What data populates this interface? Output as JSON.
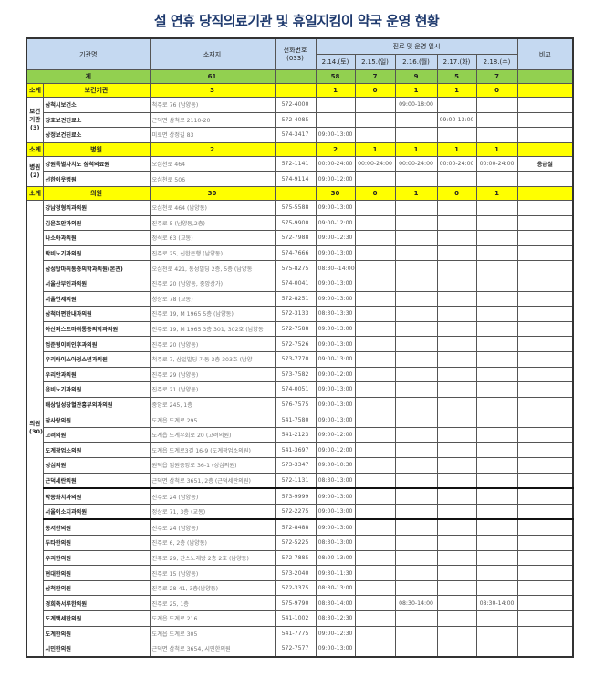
{
  "title": "설 연휴 당직의료기관 및 휴일지킴이 약국 운영 현황",
  "header": {
    "name": "기관명",
    "address": "소재지",
    "phone": "전화번호\n(033)",
    "schedule": "진료 및 운영 일시",
    "note": "비고",
    "days": [
      "2.14.(토)",
      "2.15.(일)",
      "2.16.(월)",
      "2.17.(화)",
      "2.18.(수)"
    ]
  },
  "total": {
    "label": "계",
    "count": "61",
    "days": [
      "58",
      "7",
      "9",
      "5",
      "7"
    ]
  },
  "groups": [
    {
      "sub_label": "소계",
      "name": "보건기관",
      "count": "3",
      "days": [
        "1",
        "0",
        "1",
        "1",
        "0"
      ],
      "group_label": "보건\n기관\n(3)",
      "rows": [
        {
          "name": "삼척시보건소",
          "address": "척주로 76 (남양동)",
          "phone": "572-4000",
          "times": [
            "",
            "",
            "09:00-18:00",
            "",
            ""
          ],
          "note": ""
        },
        {
          "name": "장호보건진료소",
          "address": "근덕면 삼척로 2110-20",
          "phone": "572-4085",
          "times": [
            "",
            "",
            "",
            "09:00-13:00",
            ""
          ],
          "note": ""
        },
        {
          "name": "상정보건진료소",
          "address": "미로면 상정길 83",
          "phone": "574-3417",
          "times": [
            "09:00-13:00",
            "",
            "",
            "",
            ""
          ],
          "note": ""
        }
      ]
    },
    {
      "sub_label": "소계",
      "name": "병원",
      "count": "2",
      "days": [
        "2",
        "1",
        "1",
        "1",
        "1"
      ],
      "group_label": "병원\n(2)",
      "rows": [
        {
          "name": "강원특별자치도 삼척의료원",
          "address": "오십천로 464",
          "phone": "572-1141",
          "times": [
            "00:00-24:00",
            "00:00-24:00",
            "00:00-24:00",
            "00:00-24:00",
            "00:00-24:00"
          ],
          "note": "응급실"
        },
        {
          "name": "선한이웃병원",
          "address": "오십천로 506",
          "phone": "574-9114",
          "times": [
            "09:00-12:00",
            "",
            "",
            "",
            ""
          ],
          "note": ""
        }
      ]
    },
    {
      "sub_label": "소계",
      "name": "의원",
      "count": "30",
      "days": [
        "30",
        "0",
        "1",
        "0",
        "1"
      ],
      "group_label": "의원\n(30)",
      "rows": [
        {
          "name": "강남정형외과의원",
          "address": "오십천로 464 (남양동)",
          "phone": "575-5588",
          "times": [
            "09:00-13:00",
            "",
            "",
            "",
            ""
          ],
          "note": ""
        },
        {
          "name": "김윤호안과의원",
          "address": "진주로 5 (남양동,2층)",
          "phone": "575-9900",
          "times": [
            "09:00-12:00",
            "",
            "",
            "",
            ""
          ],
          "note": ""
        },
        {
          "name": "나소아과의원",
          "address": "청석로 63 (교동)",
          "phone": "572-7988",
          "times": [
            "09:00-12:30",
            "",
            "",
            "",
            ""
          ],
          "note": ""
        },
        {
          "name": "박비뇨기과의원",
          "address": "진주로 25, 신한은행 (남양동)",
          "phone": "574-7666",
          "times": [
            "09:00-13:00",
            "",
            "",
            "",
            ""
          ],
          "note": ""
        },
        {
          "name": "삼성탑마취통증의학과의원(본관)",
          "address": "오십천로 421, 동성빌딩 2층, 5층 (남양동",
          "phone": "575-8275",
          "times": [
            "08:30--14:00",
            "",
            "",
            "",
            ""
          ],
          "note": ""
        },
        {
          "name": "서울산부인과의원",
          "address": "진주로 20 (남양동, 중앙상가)",
          "phone": "574-0041",
          "times": [
            "09:00-13:00",
            "",
            "",
            "",
            ""
          ],
          "note": ""
        },
        {
          "name": "서울연세의원",
          "address": "청상로 78 (교동)",
          "phone": "572-8251",
          "times": [
            "09:00-13:00",
            "",
            "",
            "",
            ""
          ],
          "note": ""
        },
        {
          "name": "삼척더편한내과의원",
          "address": "진주로 19, M 1965 5층 (남양동)",
          "phone": "572-3133",
          "times": [
            "08:30-13:30",
            "",
            "",
            "",
            ""
          ],
          "note": ""
        },
        {
          "name": "아산퍼스트마취통증의학과의원",
          "address": "진주로 19, M 1965 3층 301, 302호 (남양동",
          "phone": "572-7588",
          "times": [
            "09:00-13:00",
            "",
            "",
            "",
            ""
          ],
          "note": ""
        },
        {
          "name": "엄준형이비인후과의원",
          "address": "진주로 20 (남양동)",
          "phone": "572-7526",
          "times": [
            "09:00-13:00",
            "",
            "",
            "",
            ""
          ],
          "note": ""
        },
        {
          "name": "우리아이소아청소년과의원",
          "address": "척주로 7, 삼일빌딩 가동 3층 303호 (남양",
          "phone": "573-7770",
          "times": [
            "09:00-13:00",
            "",
            "",
            "",
            ""
          ],
          "note": ""
        },
        {
          "name": "우리안과의원",
          "address": "진주로 29 (남양동)",
          "phone": "573-7582",
          "times": [
            "09:00-12:00",
            "",
            "",
            "",
            ""
          ],
          "note": ""
        },
        {
          "name": "윤비뇨기과의원",
          "address": "진주로 21 (남양동)",
          "phone": "574-0051",
          "times": [
            "09:00-13:00",
            "",
            "",
            "",
            ""
          ],
          "note": ""
        },
        {
          "name": "배상일성장혈관흉부외과의원",
          "address": "중앙로 245, 1층",
          "phone": "576-7575",
          "times": [
            "09:00-13:00",
            "",
            "",
            "",
            ""
          ],
          "note": ""
        },
        {
          "name": "참사랑의원",
          "address": "도계읍 도계로 295",
          "phone": "541-7580",
          "times": [
            "09:00-13:00",
            "",
            "",
            "",
            ""
          ],
          "note": ""
        },
        {
          "name": "고려의원",
          "address": "도계읍 도계우회로 20 (고려의원)",
          "phone": "541-2123",
          "times": [
            "09:00-12:00",
            "",
            "",
            "",
            ""
          ],
          "note": ""
        },
        {
          "name": "도계광업소의원",
          "address": "도계읍 도계로3길 16-9 (도계광업소의원)",
          "phone": "541-3697",
          "times": [
            "09:00-12:00",
            "",
            "",
            "",
            ""
          ],
          "note": ""
        },
        {
          "name": "성심의원",
          "address": "원덕읍 임원중앙로 36-1 (성심의원)",
          "phone": "573-3347",
          "times": [
            "09:00-10:30",
            "",
            "",
            "",
            ""
          ],
          "note": ""
        },
        {
          "name": "근덕세란의원",
          "address": "근덕면 삼척로 3651, 2층 (근덕세란의원)",
          "phone": "572-1131",
          "times": [
            "08:30-13:00",
            "",
            "",
            "",
            ""
          ],
          "note": ""
        },
        {
          "name": "박종화치과의원",
          "address": "진주로 24 (남양동)",
          "phone": "573-9999",
          "times": [
            "09:00-13:00",
            "",
            "",
            "",
            ""
          ],
          "note": ""
        },
        {
          "name": "서울이소치과의원",
          "address": "정상로 71, 3층 (교동)",
          "phone": "572-2275",
          "times": [
            "09:00-13:00",
            "",
            "",
            "",
            ""
          ],
          "note": ""
        },
        {
          "name": "동서한의원",
          "address": "진주로 24 (남양동)",
          "phone": "572-8488",
          "times": [
            "09:00-13:00",
            "",
            "",
            "",
            ""
          ],
          "note": ""
        },
        {
          "name": "두타한의원",
          "address": "진주로 6, 2층 (남양동)",
          "phone": "572-5225",
          "times": [
            "08:30-13:00",
            "",
            "",
            "",
            ""
          ],
          "note": ""
        },
        {
          "name": "우리한의원",
          "address": "진주로 29, 찬스노래방 2층 2호 (남양동)",
          "phone": "572-7885",
          "times": [
            "08:00-13:00",
            "",
            "",
            "",
            ""
          ],
          "note": ""
        },
        {
          "name": "현대한의원",
          "address": "진주로 15 (남양동)",
          "phone": "573-2040",
          "times": [
            "09:30-11:30",
            "",
            "",
            "",
            ""
          ],
          "note": ""
        },
        {
          "name": "삼척한의원",
          "address": "진주로 28-41, 3층(남양동)",
          "phone": "572-3375",
          "times": [
            "08:30-13:00",
            "",
            "",
            "",
            ""
          ],
          "note": ""
        },
        {
          "name": "경희죽서루한의원",
          "address": "진주로 25, 1층",
          "phone": "575-9790",
          "times": [
            "08:30-14:00",
            "",
            "08:30-14:00",
            "",
            "08:30-14:00"
          ],
          "note": ""
        },
        {
          "name": "도계백세한의원",
          "address": "도계읍 도계로 216",
          "phone": "541-1002",
          "times": [
            "08:30-12:30",
            "",
            "",
            "",
            ""
          ],
          "note": ""
        },
        {
          "name": "도계한의원",
          "address": "도계읍 도계로 305",
          "phone": "541-7775",
          "times": [
            "09:00-12:30",
            "",
            "",
            "",
            ""
          ],
          "note": ""
        },
        {
          "name": "시민한의원",
          "address": "근덕면 삼척로 3654, 시민한의원",
          "phone": "572-7577",
          "times": [
            "09:00-13:00",
            "",
            "",
            "",
            ""
          ],
          "note": ""
        }
      ]
    }
  ]
}
